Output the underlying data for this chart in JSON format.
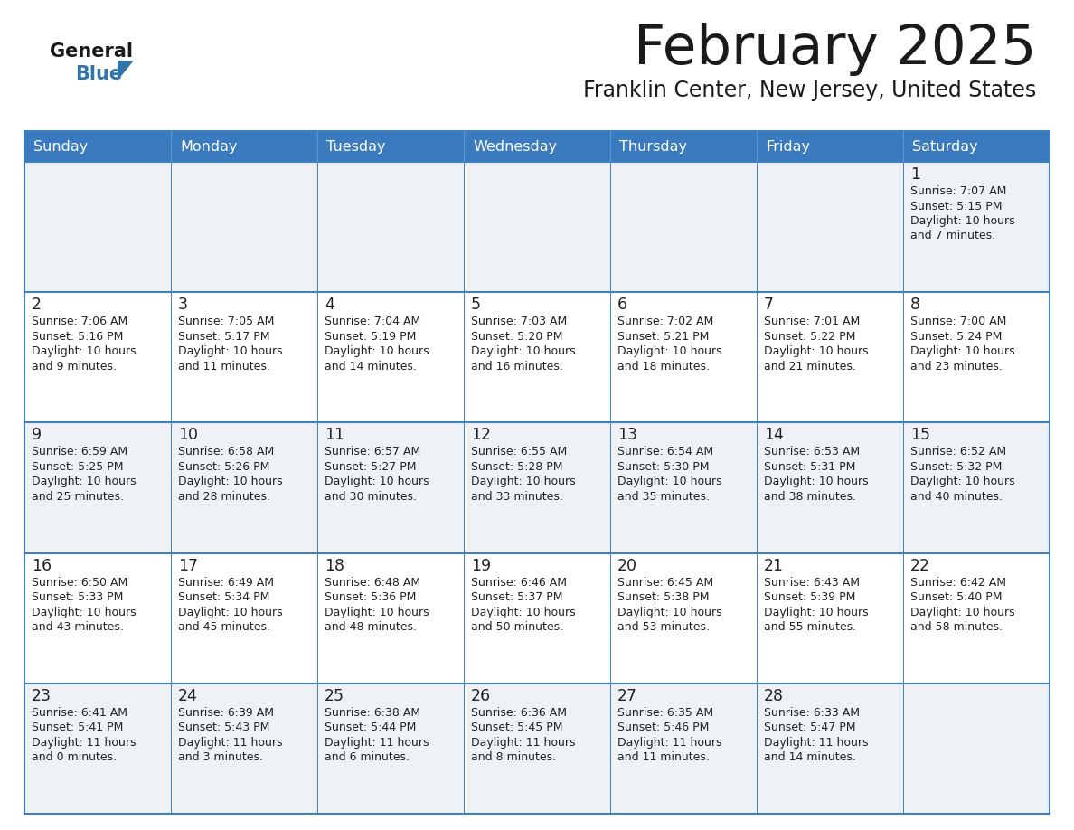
{
  "title": "February 2025",
  "subtitle": "Franklin Center, New Jersey, United States",
  "days_of_week": [
    "Sunday",
    "Monday",
    "Tuesday",
    "Wednesday",
    "Thursday",
    "Friday",
    "Saturday"
  ],
  "header_bg": "#3a7abf",
  "header_text": "#ffffff",
  "cell_bg_light": "#eef1f5",
  "cell_bg_white": "#ffffff",
  "day_num_color": "#222222",
  "info_text_color": "#222222",
  "border_color": "#4080bb",
  "separator_color": "#4080bb",
  "logo_general_color": "#1a1a1a",
  "logo_blue_color": "#3375a8",
  "logo_triangle_color": "#3375a8",
  "calendar_data": [
    [
      null,
      null,
      null,
      null,
      null,
      null,
      {
        "day": "1",
        "sunrise": "7:07 AM",
        "sunset": "5:15 PM",
        "daylight": "10 hours\nand 7 minutes."
      }
    ],
    [
      {
        "day": "2",
        "sunrise": "7:06 AM",
        "sunset": "5:16 PM",
        "daylight": "10 hours\nand 9 minutes."
      },
      {
        "day": "3",
        "sunrise": "7:05 AM",
        "sunset": "5:17 PM",
        "daylight": "10 hours\nand 11 minutes."
      },
      {
        "day": "4",
        "sunrise": "7:04 AM",
        "sunset": "5:19 PM",
        "daylight": "10 hours\nand 14 minutes."
      },
      {
        "day": "5",
        "sunrise": "7:03 AM",
        "sunset": "5:20 PM",
        "daylight": "10 hours\nand 16 minutes."
      },
      {
        "day": "6",
        "sunrise": "7:02 AM",
        "sunset": "5:21 PM",
        "daylight": "10 hours\nand 18 minutes."
      },
      {
        "day": "7",
        "sunrise": "7:01 AM",
        "sunset": "5:22 PM",
        "daylight": "10 hours\nand 21 minutes."
      },
      {
        "day": "8",
        "sunrise": "7:00 AM",
        "sunset": "5:24 PM",
        "daylight": "10 hours\nand 23 minutes."
      }
    ],
    [
      {
        "day": "9",
        "sunrise": "6:59 AM",
        "sunset": "5:25 PM",
        "daylight": "10 hours\nand 25 minutes."
      },
      {
        "day": "10",
        "sunrise": "6:58 AM",
        "sunset": "5:26 PM",
        "daylight": "10 hours\nand 28 minutes."
      },
      {
        "day": "11",
        "sunrise": "6:57 AM",
        "sunset": "5:27 PM",
        "daylight": "10 hours\nand 30 minutes."
      },
      {
        "day": "12",
        "sunrise": "6:55 AM",
        "sunset": "5:28 PM",
        "daylight": "10 hours\nand 33 minutes."
      },
      {
        "day": "13",
        "sunrise": "6:54 AM",
        "sunset": "5:30 PM",
        "daylight": "10 hours\nand 35 minutes."
      },
      {
        "day": "14",
        "sunrise": "6:53 AM",
        "sunset": "5:31 PM",
        "daylight": "10 hours\nand 38 minutes."
      },
      {
        "day": "15",
        "sunrise": "6:52 AM",
        "sunset": "5:32 PM",
        "daylight": "10 hours\nand 40 minutes."
      }
    ],
    [
      {
        "day": "16",
        "sunrise": "6:50 AM",
        "sunset": "5:33 PM",
        "daylight": "10 hours\nand 43 minutes."
      },
      {
        "day": "17",
        "sunrise": "6:49 AM",
        "sunset": "5:34 PM",
        "daylight": "10 hours\nand 45 minutes."
      },
      {
        "day": "18",
        "sunrise": "6:48 AM",
        "sunset": "5:36 PM",
        "daylight": "10 hours\nand 48 minutes."
      },
      {
        "day": "19",
        "sunrise": "6:46 AM",
        "sunset": "5:37 PM",
        "daylight": "10 hours\nand 50 minutes."
      },
      {
        "day": "20",
        "sunrise": "6:45 AM",
        "sunset": "5:38 PM",
        "daylight": "10 hours\nand 53 minutes."
      },
      {
        "day": "21",
        "sunrise": "6:43 AM",
        "sunset": "5:39 PM",
        "daylight": "10 hours\nand 55 minutes."
      },
      {
        "day": "22",
        "sunrise": "6:42 AM",
        "sunset": "5:40 PM",
        "daylight": "10 hours\nand 58 minutes."
      }
    ],
    [
      {
        "day": "23",
        "sunrise": "6:41 AM",
        "sunset": "5:41 PM",
        "daylight": "11 hours\nand 0 minutes."
      },
      {
        "day": "24",
        "sunrise": "6:39 AM",
        "sunset": "5:43 PM",
        "daylight": "11 hours\nand 3 minutes."
      },
      {
        "day": "25",
        "sunrise": "6:38 AM",
        "sunset": "5:44 PM",
        "daylight": "11 hours\nand 6 minutes."
      },
      {
        "day": "26",
        "sunrise": "6:36 AM",
        "sunset": "5:45 PM",
        "daylight": "11 hours\nand 8 minutes."
      },
      {
        "day": "27",
        "sunrise": "6:35 AM",
        "sunset": "5:46 PM",
        "daylight": "11 hours\nand 11 minutes."
      },
      {
        "day": "28",
        "sunrise": "6:33 AM",
        "sunset": "5:47 PM",
        "daylight": "11 hours\nand 14 minutes."
      },
      null
    ]
  ]
}
